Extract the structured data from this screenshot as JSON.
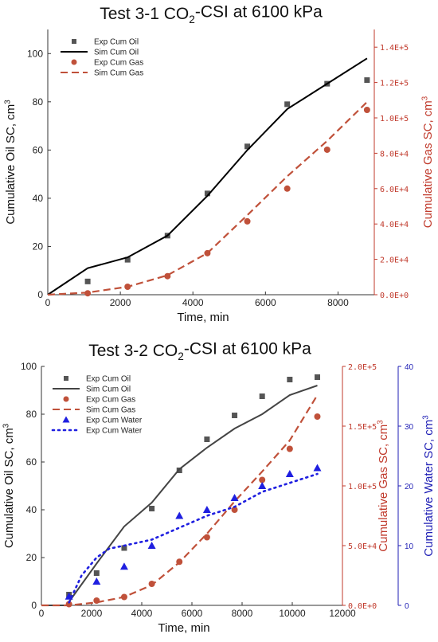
{
  "chart_data": [
    {
      "type": "line",
      "title": "Test 3-1 CO₂-CSI at 6100 kPa",
      "title_parts": [
        "Test 3-1 CO",
        "2",
        "-CSI at 6100 kPa"
      ],
      "xlabel": "Time, min",
      "ylabel_left": "Cumulative Oil SC, cm³",
      "ylabel_left_parts": [
        "Cumulative Oil SC, cm",
        "3"
      ],
      "ylabel_right": "Cumulative Gas SC, cm³",
      "ylabel_right_parts": [
        "Cumulative Gas SC, cm",
        "3"
      ],
      "xlim": [
        0,
        9000
      ],
      "ylim_left": [
        0,
        110
      ],
      "ylim_right": [
        0,
        150000
      ],
      "x_ticks": [
        0,
        2000,
        4000,
        6000,
        8000
      ],
      "x_tick_labels": [
        "0",
        "2000",
        "4000",
        "6000",
        "8000"
      ],
      "y_left_ticks": [
        0,
        20,
        40,
        60,
        80,
        100
      ],
      "y_left_tick_labels": [
        "0",
        "20",
        "40",
        "60",
        "80",
        "100"
      ],
      "y_right_ticks": [
        0,
        20000,
        40000,
        60000,
        80000,
        100000,
        120000,
        140000
      ],
      "y_right_tick_labels": [
        "0.0E+0",
        "2.0E+4",
        "4.0E+4",
        "6.0E+4",
        "8.0E+4",
        "1.0E+5",
        "1.2E+5",
        "1.4E+5"
      ],
      "legend_position": "top-left",
      "series": [
        {
          "name": "Exp Cum Oil",
          "kind": "scatter",
          "marker": "square",
          "axis": "left",
          "color": "#555555",
          "x": [
            1100,
            2200,
            3300,
            4400,
            5500,
            6600,
            7700,
            8800
          ],
          "y": [
            5.5,
            14.5,
            24.5,
            42,
            61.5,
            79,
            87.5,
            89
          ]
        },
        {
          "name": "Sim Cum Oil",
          "kind": "line",
          "dash": "solid",
          "axis": "left",
          "color": "#000000",
          "x": [
            0,
            1100,
            2200,
            3300,
            4400,
            5500,
            6600,
            7700,
            8800
          ],
          "y": [
            0,
            11,
            15.5,
            24.5,
            41,
            60,
            77,
            87.5,
            98
          ]
        },
        {
          "name": "Exp Cum Gas",
          "kind": "scatter",
          "marker": "circle",
          "axis": "right",
          "color": "#c0513a",
          "x": [
            1100,
            2200,
            3300,
            4400,
            5500,
            6600,
            7700,
            8800
          ],
          "y": [
            800,
            4500,
            10500,
            23500,
            41500,
            60000,
            82000,
            104500
          ]
        },
        {
          "name": "Sim Cum Gas",
          "kind": "line",
          "dash": "dashed",
          "axis": "right",
          "color": "#c0513a",
          "x": [
            0,
            1100,
            2200,
            3300,
            4400,
            5500,
            6600,
            7700,
            8800
          ],
          "y": [
            0,
            1200,
            4500,
            11000,
            23500,
            45000,
            67000,
            87000,
            109000
          ]
        }
      ]
    },
    {
      "type": "line",
      "title": "Test 3-2 CO₂-CSI at 6100 kPa",
      "title_parts": [
        "Test 3-2 CO",
        "2",
        "-CSI at 6100 kPa"
      ],
      "xlabel": "Time, min",
      "ylabel_left": "Cumulative Oil SC, cm³",
      "ylabel_left_parts": [
        "Cumulative Oil SC, cm",
        "3"
      ],
      "ylabel_right": "Cumulative Gas SC, cm³",
      "ylabel_right_parts": [
        "Cumulative Gas SC, cm",
        "3"
      ],
      "ylabel_right2": "Cumulative Water SC, cm³",
      "ylabel_right2_parts": [
        "Cumulative Water SC, cm",
        "3"
      ],
      "xlim": [
        0,
        12000
      ],
      "ylim_left": [
        0,
        100
      ],
      "ylim_right": [
        0,
        200000
      ],
      "ylim_right2": [
        0,
        40
      ],
      "x_ticks": [
        0,
        2000,
        4000,
        6000,
        8000,
        10000,
        12000
      ],
      "x_tick_labels": [
        "0",
        "2000",
        "4000",
        "6000",
        "8000",
        "10000",
        "12000"
      ],
      "y_left_ticks": [
        0,
        20,
        40,
        60,
        80,
        100
      ],
      "y_left_tick_labels": [
        "0",
        "20",
        "40",
        "60",
        "80",
        "100"
      ],
      "y_right_ticks": [
        0,
        50000,
        100000,
        150000,
        200000
      ],
      "y_right_tick_labels": [
        "0.0E+0",
        "5.0E+4",
        "1.0E+5",
        "1.5E+5",
        "2.0E+5"
      ],
      "y_right2_ticks": [
        0,
        10,
        20,
        30,
        40
      ],
      "y_right2_tick_labels": [
        "0",
        "10",
        "20",
        "30",
        "40"
      ],
      "legend_position": "top-left",
      "series": [
        {
          "name": "Exp Cum Oil",
          "kind": "scatter",
          "marker": "square",
          "axis": "left",
          "color": "#555555",
          "x": [
            1100,
            2200,
            3300,
            4400,
            5500,
            6600,
            7700,
            8800,
            9900,
            11000
          ],
          "y": [
            4.5,
            13.5,
            24,
            40.5,
            56.5,
            69.5,
            79.5,
            87.5,
            94.5,
            95.5
          ]
        },
        {
          "name": "Sim Cum Oil",
          "kind": "line",
          "dash": "solid",
          "axis": "left",
          "color": "#444444",
          "x": [
            0,
            1000,
            2200,
            3300,
            4400,
            5500,
            6600,
            7700,
            8800,
            9900,
            11000
          ],
          "y": [
            0,
            0,
            17.5,
            33,
            43,
            57,
            66,
            74,
            80,
            88,
            92
          ]
        },
        {
          "name": "Exp Cum Gas",
          "kind": "scatter",
          "marker": "circle",
          "axis": "right",
          "color": "#c0513a",
          "x": [
            1100,
            2200,
            3300,
            4400,
            5500,
            6600,
            7700,
            8800,
            9900,
            11000
          ],
          "y": [
            1000,
            4000,
            7000,
            18000,
            36500,
            57000,
            80000,
            105000,
            131000,
            158000
          ]
        },
        {
          "name": "Sim Cum Gas",
          "kind": "line",
          "dash": "dashed",
          "axis": "right",
          "color": "#c0513a",
          "x": [
            0,
            1100,
            2200,
            3300,
            4400,
            5500,
            6600,
            7700,
            8800,
            9900,
            11000
          ],
          "y": [
            0,
            0,
            2500,
            7000,
            17000,
            36000,
            60000,
            87000,
            112000,
            138000,
            176000
          ]
        },
        {
          "name": "Exp Cum Water",
          "kind": "scatter",
          "marker": "triangle",
          "axis": "right2",
          "color": "#1f1fe0",
          "x": [
            1100,
            2200,
            3300,
            4400,
            5500,
            6600,
            7700,
            8800,
            9900,
            11000
          ],
          "y": [
            1.5,
            4,
            6.5,
            10,
            15,
            16,
            18,
            20,
            22,
            23
          ]
        },
        {
          "name": "Exp Cum Water",
          "kind": "line",
          "dash": "dotted",
          "axis": "right2",
          "color": "#1f1fe0",
          "x": [
            1100,
            1600,
            2200,
            2700,
            3300,
            4400,
            5500,
            6600,
            7700,
            8800,
            9900,
            11000
          ],
          "y": [
            0.5,
            5,
            8,
            9.5,
            10,
            11,
            13,
            15,
            16.5,
            19,
            20.5,
            22
          ]
        }
      ]
    }
  ]
}
